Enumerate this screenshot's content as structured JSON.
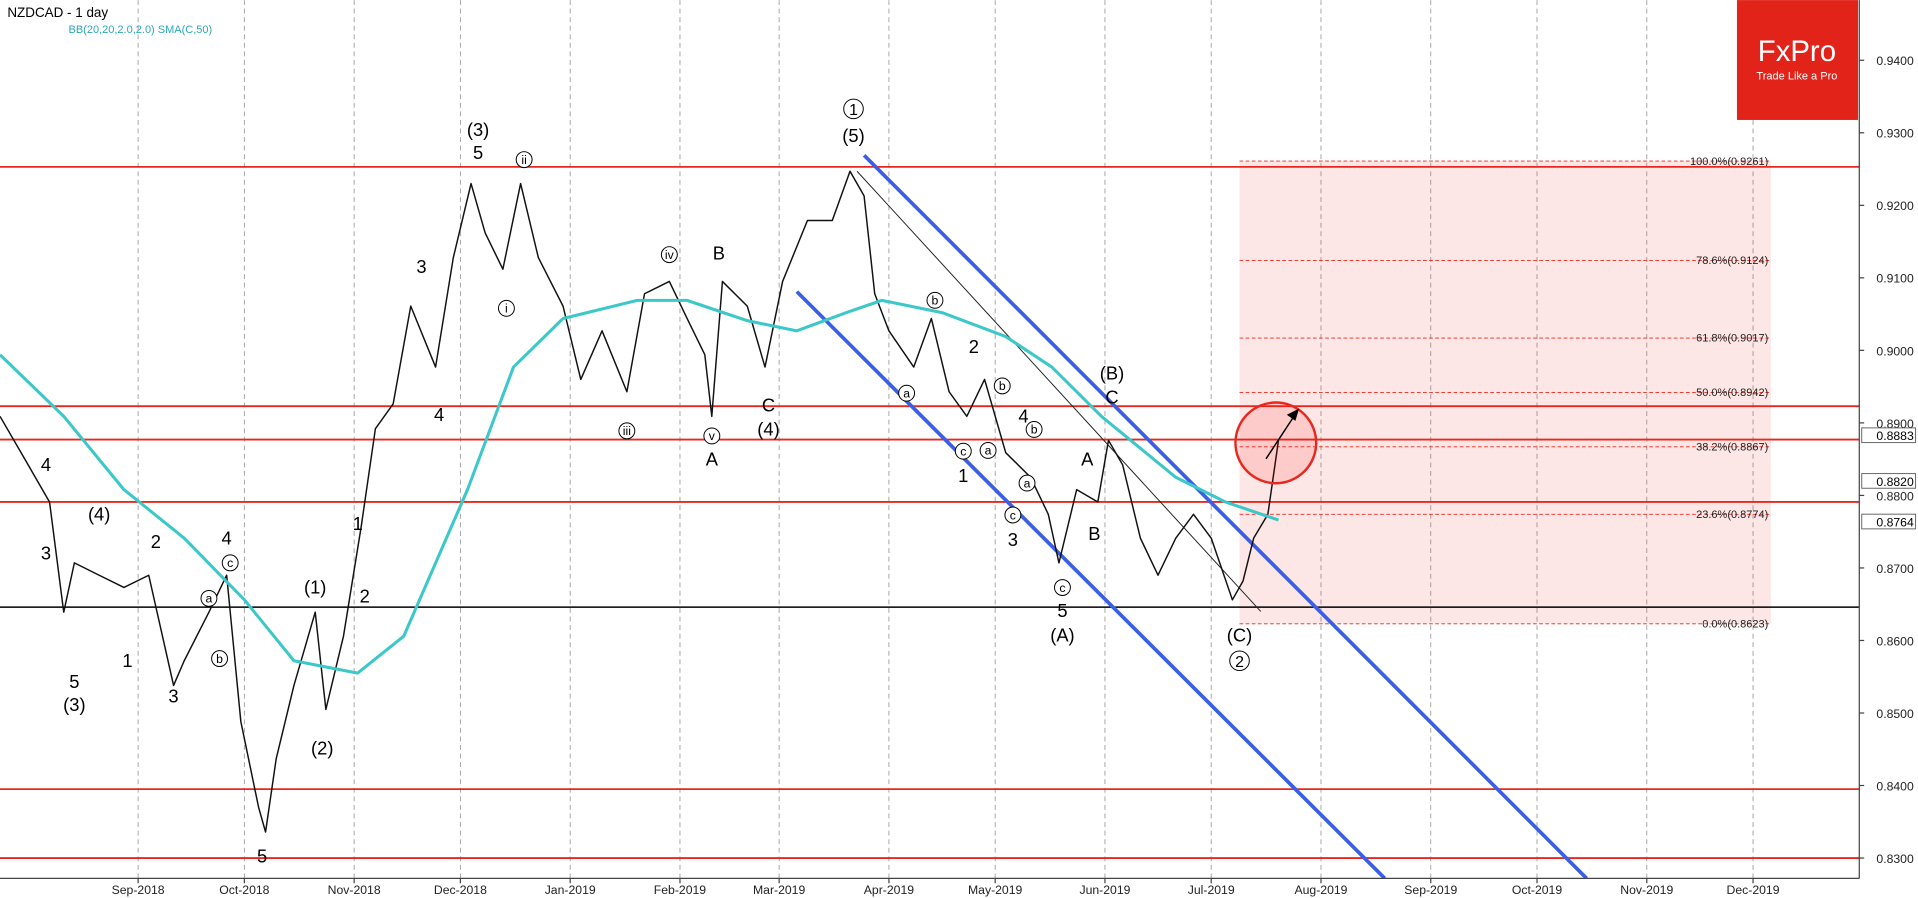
{
  "chart_data": {
    "type": "line",
    "title": "NZDCAD - 1 day",
    "subtitle": "BB(20,20,2.0,2.0) SMA(C,50)",
    "logo": {
      "name": "FxPro",
      "tagline": "Trade Like a Pro"
    },
    "xlim": [
      -8,
      517
    ],
    "ylim": [
      0.8272,
      0.9483
    ],
    "xticks": [
      {
        "value": 31,
        "label": "Sep-2018"
      },
      {
        "value": 61,
        "label": "Oct-2018"
      },
      {
        "value": 92,
        "label": "Nov-2018"
      },
      {
        "value": 122,
        "label": "Dec-2018"
      },
      {
        "value": 153,
        "label": "Jan-2019"
      },
      {
        "value": 184,
        "label": "Feb-2019"
      },
      {
        "value": 212,
        "label": "Mar-2019"
      },
      {
        "value": 243,
        "label": "Apr-2019"
      },
      {
        "value": 273,
        "label": "May-2019"
      },
      {
        "value": 304,
        "label": "Jun-2019"
      },
      {
        "value": 334,
        "label": "Jul-2019"
      },
      {
        "value": 365,
        "label": "Aug-2019"
      },
      {
        "value": 396,
        "label": "Sep-2019"
      },
      {
        "value": 426,
        "label": "Oct-2019"
      },
      {
        "value": 457,
        "label": "Nov-2019"
      },
      {
        "value": 487,
        "label": "Dec-2019"
      }
    ],
    "yticks": [
      {
        "value": 0.83,
        "label": "0.8300"
      },
      {
        "value": 0.84,
        "label": "0.8400"
      },
      {
        "value": 0.85,
        "label": "0.8500"
      },
      {
        "value": 0.86,
        "label": "0.8600"
      },
      {
        "value": 0.87,
        "label": "0.8700"
      },
      {
        "value": 0.88,
        "label": "0.8800"
      },
      {
        "value": 0.89,
        "label": "0.8900"
      },
      {
        "value": 0.9,
        "label": "0.9000"
      },
      {
        "value": 0.91,
        "label": "0.9100"
      },
      {
        "value": 0.92,
        "label": "0.9200"
      },
      {
        "value": 0.93,
        "label": "0.9300"
      },
      {
        "value": 0.94,
        "label": "0.9400"
      }
    ],
    "price_markers": [
      {
        "value": 0.8883,
        "label": "0.8883"
      },
      {
        "value": 0.882,
        "label": "0.8820"
      },
      {
        "value": 0.8764,
        "label": "0.8764"
      }
    ],
    "series": [
      {
        "name": "NZDCAD",
        "color": "#111111",
        "x": [
          -8,
          -1,
          6,
          10,
          13,
          20,
          27,
          34,
          41,
          44,
          51,
          56,
          60,
          65,
          67,
          70,
          75,
          81,
          84,
          89,
          94,
          98,
          103,
          108,
          115,
          120,
          125,
          129,
          134,
          139,
          144,
          151,
          156,
          162,
          169,
          174,
          181,
          186,
          191,
          193,
          196,
          203,
          208,
          213,
          220,
          227,
          232,
          236,
          239,
          243,
          250,
          255,
          260,
          265,
          270,
          276,
          283,
          288,
          291,
          296,
          302,
          305,
          309,
          314,
          319,
          324,
          329,
          334,
          340,
          343,
          346,
          350,
          353
        ],
        "values": [
          0.8909,
          0.885,
          0.8791,
          0.8639,
          0.8707,
          0.869,
          0.8673,
          0.869,
          0.8538,
          0.8572,
          0.8639,
          0.869,
          0.8488,
          0.837,
          0.8336,
          0.8437,
          0.8538,
          0.8639,
          0.8505,
          0.8606,
          0.8757,
          0.8892,
          0.8926,
          0.9061,
          0.8977,
          0.9128,
          0.923,
          0.9162,
          0.9112,
          0.923,
          0.9128,
          0.9061,
          0.896,
          0.9027,
          0.8943,
          0.9078,
          0.9095,
          0.9044,
          0.8994,
          0.8909,
          0.9095,
          0.9061,
          0.8977,
          0.9095,
          0.9179,
          0.9179,
          0.9247,
          0.9213,
          0.9078,
          0.9027,
          0.8977,
          0.9044,
          0.8943,
          0.8909,
          0.896,
          0.8859,
          0.8825,
          0.8774,
          0.8707,
          0.8808,
          0.8791,
          0.8876,
          0.8842,
          0.8741,
          0.869,
          0.8741,
          0.8774,
          0.8741,
          0.8656,
          0.8682,
          0.8741,
          0.8774,
          0.8876
        ]
      },
      {
        "name": "SMA(C,50)",
        "color": "#3cc8c8",
        "x": [
          -8,
          10,
          27,
          44,
          61,
          75,
          93,
          106,
          124,
          137,
          151,
          172,
          186,
          203,
          217,
          231,
          241,
          258,
          276,
          289,
          303,
          324,
          338,
          353
        ],
        "values": [
          0.8994,
          0.8909,
          0.8808,
          0.8741,
          0.8656,
          0.8572,
          0.8555,
          0.8606,
          0.8808,
          0.8977,
          0.9044,
          0.9069,
          0.9069,
          0.9041,
          0.9027,
          0.9052,
          0.9069,
          0.9052,
          0.9019,
          0.8977,
          0.8909,
          0.8825,
          0.8791,
          0.8766
        ]
      }
    ],
    "levels": {
      "color": "#e8281e",
      "values": [
        0.9253,
        0.8923,
        0.8877,
        0.8791,
        0.8395,
        0.83
      ]
    },
    "support": {
      "color": "#000000",
      "value": 0.8646
    },
    "trendlines": [
      {
        "color": "#3a5fe5",
        "x": [
          236,
          440
        ],
        "y": [
          0.9269,
          0.8272
        ]
      },
      {
        "color": "#3a5fe5",
        "x": [
          217,
          383
        ],
        "y": [
          0.9081,
          0.8272
        ]
      },
      {
        "color": "#222222",
        "x": [
          234,
          348
        ],
        "y": [
          0.9247,
          0.864
        ]
      }
    ],
    "fibonacci": {
      "x": [
        342,
        492
      ],
      "color": "#e8281e",
      "levels": [
        {
          "value": 0.9261,
          "label": "100.0%(0.9261)"
        },
        {
          "value": 0.9124,
          "label": "78.6%(0.9124)"
        },
        {
          "value": 0.9017,
          "label": "61.8%(0.9017)"
        },
        {
          "value": 0.8942,
          "label": "50.0%(0.8942)"
        },
        {
          "value": 0.8867,
          "label": "38.2%(0.8867)"
        },
        {
          "value": 0.8774,
          "label": "23.6%(0.8774)"
        },
        {
          "value": 0.8623,
          "label": "0.0%(0.8623)"
        }
      ]
    },
    "annotations": [
      {
        "text": "(3)",
        "x": 127,
        "y": 0.9304
      },
      {
        "text": "5",
        "x": 127,
        "y": 0.9272
      },
      {
        "text": "1",
        "x": 233,
        "y": 0.9333,
        "circled": true
      },
      {
        "text": "(5)",
        "x": 233,
        "y": 0.9296
      },
      {
        "text": "B",
        "x": 195,
        "y": 0.9134
      },
      {
        "text": "C",
        "x": 209,
        "y": 0.8924
      },
      {
        "text": "(4)",
        "x": 209,
        "y": 0.8891
      },
      {
        "text": "A",
        "x": 193,
        "y": 0.885
      },
      {
        "text": "(B)",
        "x": 306,
        "y": 0.8968
      },
      {
        "text": "C",
        "x": 306,
        "y": 0.8935
      },
      {
        "text": "A",
        "x": 299,
        "y": 0.885
      },
      {
        "text": "B",
        "x": 301,
        "y": 0.8747
      },
      {
        "text": "1",
        "x": 264,
        "y": 0.8827
      },
      {
        "text": "2",
        "x": 267,
        "y": 0.9005
      },
      {
        "text": "3",
        "x": 278,
        "y": 0.8739
      },
      {
        "text": "4",
        "x": 281,
        "y": 0.8909
      },
      {
        "text": "5",
        "x": 292,
        "y": 0.8641
      },
      {
        "text": "(A)",
        "x": 292,
        "y": 0.8607
      },
      {
        "text": "(C)",
        "x": 342,
        "y": 0.8607
      },
      {
        "text": "2",
        "x": 342,
        "y": 0.8572,
        "circled": true
      },
      {
        "text": "4",
        "x": 5,
        "y": 0.8842
      },
      {
        "text": "3",
        "x": 5,
        "y": 0.872
      },
      {
        "text": "(4)",
        "x": 20,
        "y": 0.8774
      },
      {
        "text": "2",
        "x": 36,
        "y": 0.8736
      },
      {
        "text": "5",
        "x": 13,
        "y": 0.8543
      },
      {
        "text": "(3)",
        "x": 13,
        "y": 0.8511
      },
      {
        "text": "1",
        "x": 28,
        "y": 0.8572
      },
      {
        "text": "3",
        "x": 41,
        "y": 0.8523
      },
      {
        "text": "4",
        "x": 56,
        "y": 0.8741
      },
      {
        "text": "(1)",
        "x": 81,
        "y": 0.8673
      },
      {
        "text": "2",
        "x": 95,
        "y": 0.8661
      },
      {
        "text": "1",
        "x": 93,
        "y": 0.8761
      },
      {
        "text": "(2)",
        "x": 83,
        "y": 0.8451
      },
      {
        "text": "5",
        "x": 66,
        "y": 0.8302
      },
      {
        "text": "3",
        "x": 111,
        "y": 0.9115
      },
      {
        "text": "4",
        "x": 116,
        "y": 0.8911
      },
      {
        "text": "ii",
        "x": 140,
        "y": 0.9263,
        "circled": true
      },
      {
        "text": "i",
        "x": 135,
        "y": 0.9058,
        "circled": true
      },
      {
        "text": "iv",
        "x": 181,
        "y": 0.9132,
        "circled": true
      },
      {
        "text": "iii",
        "x": 169,
        "y": 0.8889,
        "circled": true
      },
      {
        "text": "v",
        "x": 193,
        "y": 0.8882,
        "circled": true
      },
      {
        "text": "a",
        "x": 51,
        "y": 0.8658,
        "circled": true
      },
      {
        "text": "b",
        "x": 54,
        "y": 0.8575,
        "circled": true
      },
      {
        "text": "c",
        "x": 57,
        "y": 0.8707,
        "circled": true
      },
      {
        "text": "a",
        "x": 248,
        "y": 0.8941,
        "circled": true
      },
      {
        "text": "b",
        "x": 256,
        "y": 0.9069,
        "circled": true
      },
      {
        "text": "b",
        "x": 275,
        "y": 0.8951,
        "circled": true
      },
      {
        "text": "b",
        "x": 284,
        "y": 0.8891,
        "circled": true
      },
      {
        "text": "a",
        "x": 282,
        "y": 0.8817,
        "circled": true
      },
      {
        "text": "a",
        "x": 271,
        "y": 0.8862,
        "circled": true
      },
      {
        "text": "c",
        "x": 264,
        "y": 0.8861,
        "circled": true
      },
      {
        "text": "c",
        "x": 278,
        "y": 0.8773,
        "circled": true
      },
      {
        "text": "c",
        "x": 292,
        "y": 0.8673,
        "circled": true
      }
    ]
  }
}
